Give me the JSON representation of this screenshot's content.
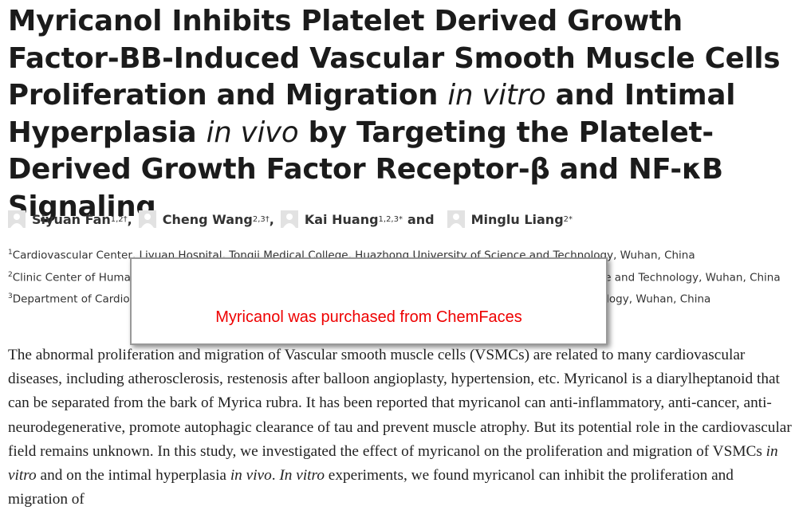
{
  "header": {
    "title": [
      "Myricanol Inhibits Platelet Derived Growth Factor-BB-Induced Vascular Smooth Muscle Cells Proliferation and Migration ",
      "in vitro",
      " and Intimal Hyperplasia ",
      "in vivo",
      " by Targeting the Platelet-Derived Growth Factor Receptor-β and NF-κB Signaling"
    ]
  },
  "authors": [
    {
      "name": "Siyuan Fan",
      "sup": "1,2†",
      "after": ","
    },
    {
      "name": "Cheng Wang",
      "sup": "2,3†",
      "after": ","
    },
    {
      "name": "Kai Huang",
      "sup": "1,2,3*",
      "after": "and"
    },
    {
      "name": "Minglu Liang",
      "sup": "2*"
    }
  ],
  "affiliations": [
    {
      "num": "1",
      "text": "Cardiovascular Center, Liyuan Hospital, Tongji Medical College, Huazhong University of Science and Technology, Wuhan, China"
    },
    {
      "num": "2",
      "text": "Clinic Center of Human Gene Research, Union Hospital, Tongji Medical College, Huazhong University of Science and Technology, Wuhan, China"
    },
    {
      "num": "3",
      "text": "Department of Cardiology, Union Hospital, Tongji Medical College, Huazhong University of Science and Technology, Wuhan, China"
    }
  ],
  "abstract": [
    "The abnormal proliferation and migration of Vascular smooth muscle cells (VSMCs) are related to many cardiovascular diseases, including atherosclerosis, restenosis after balloon angioplasty, hypertension, etc. Myricanol is a diarylheptanoid that can be separated from the bark of Myrica rubra. It has been reported that myricanol can anti-inflammatory, anti-cancer, anti-neurodegenerative, promote autophagic clearance of tau and prevent muscle atrophy. But its potential role in the cardiovascular field remains unknown. In this study, we investigated the effect of myricanol on the proliferation and migration of VSMCs ",
    "in vitro",
    " and on the intimal hyperplasia ",
    "in vivo",
    ". ",
    "In vitro",
    " experiments, we found myricanol can inhibit the proliferation and migration of"
  ],
  "overlay": {
    "text": "Myricanol was purchased from ChemFaces"
  }
}
